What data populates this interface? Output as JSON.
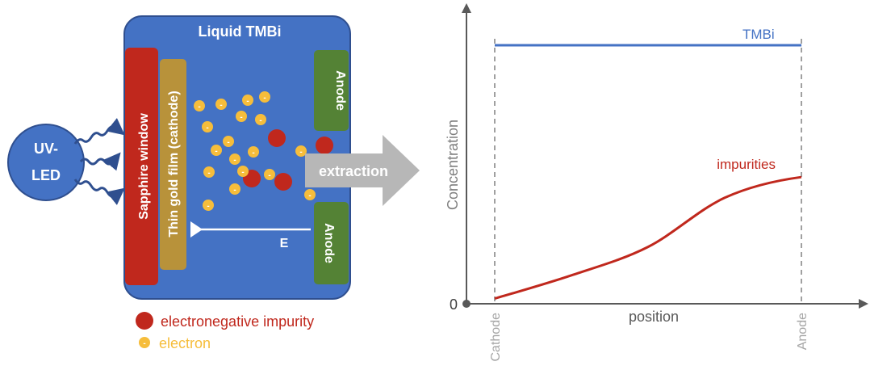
{
  "colors": {
    "cell_blue": "#4472c4",
    "cell_border": "#2f4f8f",
    "window_red": "#c0281d",
    "gold_film": "#b8923a",
    "anode_green": "#548235",
    "electron_yellow": "#f6bd3b",
    "impurity_red": "#c0281d",
    "arrow_gray": "#b7b7b7",
    "axis_gray": "#595959",
    "tmbi_line": "#4472c4",
    "impurity_line": "#c0281d"
  },
  "left_diagram": {
    "led_label_line1": "UV-",
    "led_label_line2": "LED",
    "cell_title": "Liquid TMBi",
    "sapphire_label": "Sapphire window",
    "gold_label": "Thin gold film (cathode)",
    "anode_top_label": "Anode",
    "anode_bottom_label": "Anode",
    "extraction_label": "extraction",
    "field_label": "E",
    "electron_symbol": "-",
    "legend": {
      "impurity_label": "electronegative impurity",
      "electron_label": "electron"
    }
  },
  "chart_data": {
    "type": "line",
    "title": "",
    "xlabel": "position",
    "ylabel": "Concentration",
    "origin_label": "0",
    "x_markers": [
      "Cathode",
      "Anode"
    ],
    "series": [
      {
        "name": "TMBi",
        "x": [
          0,
          1
        ],
        "y": [
          1.0,
          1.0
        ]
      },
      {
        "name": "impurities",
        "x": [
          0,
          0.25,
          0.5,
          0.75,
          1.0
        ],
        "y": [
          0.02,
          0.11,
          0.22,
          0.41,
          0.49
        ]
      }
    ],
    "xlim": [
      0,
      1
    ],
    "ylim": [
      0,
      1
    ],
    "grid": false
  }
}
